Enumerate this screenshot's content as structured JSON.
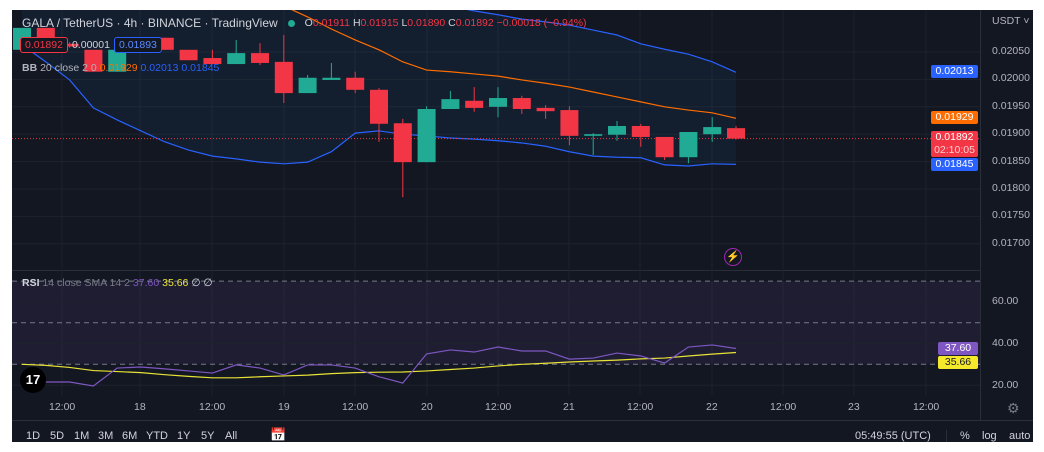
{
  "header": {
    "symbol": "GALA / TetherUS · 4h · BINANCE · TradingView",
    "open_label": "O",
    "open": "0.01911",
    "high_label": "H",
    "high": "0.01915",
    "low_label": "L",
    "low": "0.01890",
    "close_label": "C",
    "close": "0.01892",
    "change": "−0.00018 (−0.94%)",
    "sell_price": "0.01892",
    "spread": "0.00001",
    "buy_price": "0.01893"
  },
  "bb_legend": {
    "label": "BB",
    "params": "20 close 2 0",
    "basis": "0.01929",
    "upper": "0.02013",
    "lower": "0.01845"
  },
  "rsi_legend": {
    "label": "RSI",
    "params": "14 close SMA 14 2",
    "rsi": "37.60",
    "sma": "35.66",
    "extra": "∅ ∅"
  },
  "price_axis": {
    "currency": "USDT",
    "ticks": [
      "0.02050",
      "0.02000",
      "0.01950",
      "0.01900",
      "0.01850",
      "0.01800",
      "0.01750",
      "0.01700"
    ],
    "tags": {
      "upper": "0.02013",
      "basis": "0.01929",
      "last": "0.01892",
      "countdown": "02:10:05",
      "lower": "0.01845"
    }
  },
  "rsi_axis": {
    "ticks": [
      "60.00",
      "40.00",
      "20.00"
    ],
    "rsi_tag": "37.60",
    "sma_tag": "35.66"
  },
  "time_axis": {
    "labels": [
      "12:00",
      "18",
      "12:00",
      "19",
      "12:00",
      "20",
      "12:00",
      "21",
      "12:00",
      "22",
      "12:00",
      "23",
      "12:00"
    ]
  },
  "toolbar": {
    "ranges": [
      "1D",
      "5D",
      "1M",
      "3M",
      "6M",
      "YTD",
      "1Y",
      "5Y",
      "All"
    ],
    "clock": "05:49:55 (UTC)",
    "percent": "%",
    "log": "log",
    "auto": "auto"
  },
  "colors": {
    "up": "#22ab94",
    "down": "#f23645",
    "bb_band": "#2962ff",
    "bb_basis": "#ff6d00",
    "rsi": "#7e57c2",
    "rsi_sma": "#e8e337",
    "background": "#131722"
  },
  "icons": {
    "live": "green-dot-icon",
    "calendar": "calendar-goto-icon",
    "settings": "gear-icon",
    "lightning": "lightning-icon",
    "logo": "tradingview-logo"
  },
  "chart_data": {
    "type": "candlestick",
    "price_range": [
      0.0166,
      0.0208
    ],
    "candles": [
      [
        0.02054,
        0.02094,
        0.02054,
        0.02094
      ],
      [
        0.02094,
        0.02094,
        0.02065,
        0.02065
      ],
      [
        0.02065,
        0.02068,
        0.02058,
        0.0206
      ],
      [
        0.02054,
        0.02054,
        0.02014,
        0.02014
      ],
      [
        0.02014,
        0.02054,
        0.02014,
        0.02054
      ],
      [
        0.02054,
        0.02072,
        0.02054,
        0.0207
      ],
      [
        0.02076,
        0.02076,
        0.02054,
        0.02054
      ],
      [
        0.02054,
        0.02054,
        0.02035,
        0.02035
      ],
      [
        0.02039,
        0.02054,
        0.02028,
        0.02028
      ],
      [
        0.02028,
        0.02072,
        0.02028,
        0.02048
      ],
      [
        0.02048,
        0.02066,
        0.02026,
        0.0203
      ],
      [
        0.02032,
        0.02081,
        0.01957,
        0.01975
      ],
      [
        0.01975,
        0.02008,
        0.01975,
        0.02003
      ],
      [
        0.01999,
        0.0203,
        0.01999,
        0.02003
      ],
      [
        0.02003,
        0.02014,
        0.01975,
        0.01981
      ],
      [
        0.01981,
        0.01984,
        0.01886,
        0.01919
      ],
      [
        0.0192,
        0.01928,
        0.01785,
        0.01849
      ],
      [
        0.01849,
        0.01951,
        0.01849,
        0.01946
      ],
      [
        0.01946,
        0.01979,
        0.01946,
        0.01964
      ],
      [
        0.01961,
        0.01986,
        0.01941,
        0.01948
      ],
      [
        0.0195,
        0.01986,
        0.01931,
        0.01966
      ],
      [
        0.01966,
        0.0197,
        0.01937,
        0.01946
      ],
      [
        0.01948,
        0.01953,
        0.01928,
        0.01942
      ],
      [
        0.01944,
        0.01951,
        0.0188,
        0.01897
      ],
      [
        0.01897,
        0.01902,
        0.01862,
        0.019
      ],
      [
        0.01899,
        0.01924,
        0.01888,
        0.01915
      ],
      [
        0.01915,
        0.01919,
        0.01877,
        0.01895
      ],
      [
        0.01895,
        0.01895,
        0.01853,
        0.01858
      ],
      [
        0.01858,
        0.01904,
        0.01847,
        0.01904
      ],
      [
        0.019,
        0.01931,
        0.01886,
        0.01913
      ],
      [
        0.01911,
        0.01915,
        0.0189,
        0.01892
      ]
    ],
    "bb_upper": [
      0.0222,
      0.0222,
      0.0222,
      0.0222,
      0.0222,
      0.0222,
      0.0222,
      0.0222,
      0.0222,
      0.0221,
      0.022,
      0.0219,
      0.0218,
      0.0217,
      0.0216,
      0.0215,
      0.02145,
      0.0214,
      0.02134,
      0.02125,
      0.02118,
      0.0211,
      0.02105,
      0.02099,
      0.0209,
      0.02081,
      0.02065,
      0.02055,
      0.02046,
      0.02032,
      0.02013
    ],
    "bb_basis": [
      0.0225,
      0.0224,
      0.0223,
      0.0222,
      0.0221,
      0.022,
      0.0219,
      0.0218,
      0.0217,
      0.02174,
      0.02154,
      0.02134,
      0.02114,
      0.02092,
      0.02072,
      0.02054,
      0.02032,
      0.02017,
      0.02014,
      0.0201,
      0.02006,
      0.01999,
      0.01993,
      0.01986,
      0.01977,
      0.01968,
      0.01959,
      0.0195,
      0.01944,
      0.01939,
      0.01929
    ],
    "bb_lower": [
      0.02063,
      0.02032,
      0.01999,
      0.01948,
      0.01926,
      0.01906,
      0.01886,
      0.01871,
      0.0186,
      0.01855,
      0.01849,
      0.01846,
      0.01849,
      0.01868,
      0.01902,
      0.01906,
      0.019,
      0.01897,
      0.01893,
      0.01891,
      0.01888,
      0.01884,
      0.01878,
      0.01868,
      0.0186,
      0.01858,
      0.01857,
      0.01844,
      0.01842,
      0.01846,
      0.01845
    ],
    "rsi_range": [
      10,
      75
    ],
    "rsi_levels": [
      70,
      50,
      30
    ],
    "rsi": [
      21.5,
      21.5,
      21.5,
      19.6,
      28.2,
      28.7,
      27.8,
      26.8,
      25.8,
      29.7,
      28.2,
      24.9,
      29.7,
      29.7,
      28.2,
      24.0,
      21.0,
      35.0,
      36.9,
      35.9,
      38.3,
      36.4,
      36.4,
      32.5,
      33.0,
      35.4,
      34.0,
      30.6,
      38.3,
      39.3,
      37.6
    ],
    "rsi_sma": [
      30,
      29.5,
      28.5,
      27,
      26.5,
      26,
      25,
      24.2,
      23.5,
      23.5,
      24,
      24.4,
      24.8,
      25.5,
      26,
      26.2,
      26.3,
      26.8,
      27.5,
      28.2,
      29.2,
      30,
      30.5,
      31.1,
      31.6,
      32,
      32.6,
      33,
      34,
      34.9,
      35.66
    ],
    "grid": true
  }
}
